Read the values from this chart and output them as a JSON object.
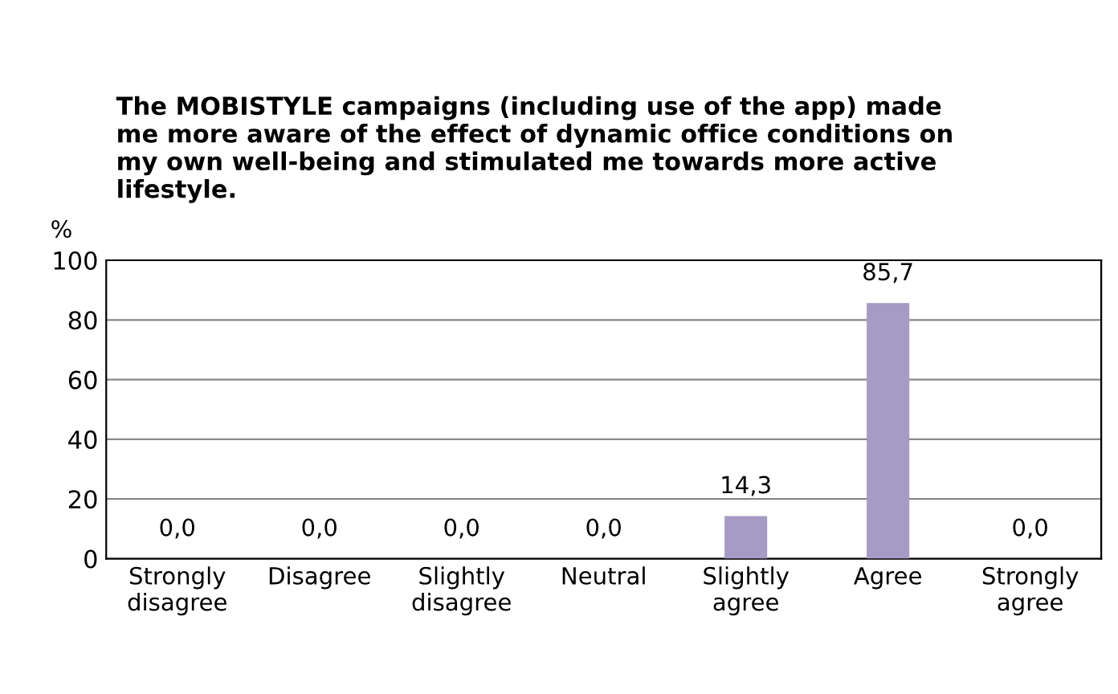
{
  "chart_data": {
    "type": "bar",
    "title": "The MOBISTYLE campaigns (including use of the app) made\nme more aware of the effect of dynamic office conditions on\nmy own well-being and stimulated me towards more active\nlifestyle.",
    "ylabel": "%",
    "categories": [
      "Strongly\ndisagree",
      "Disagree",
      "Slightly\ndisagree",
      "Neutral",
      "Slightly\nagree",
      "Agree",
      "Strongly\nagree"
    ],
    "values": [
      0,
      0,
      0,
      0,
      14.3,
      85.7,
      0
    ],
    "value_labels": [
      "0,0",
      "0,0",
      "0,0",
      "0,0",
      "14,3",
      "85,7",
      "0,0"
    ],
    "color": "#a59bc4",
    "ylim": [
      0,
      100
    ],
    "yticks": [
      0,
      20,
      40,
      60,
      80,
      100
    ],
    "grid": "y"
  }
}
